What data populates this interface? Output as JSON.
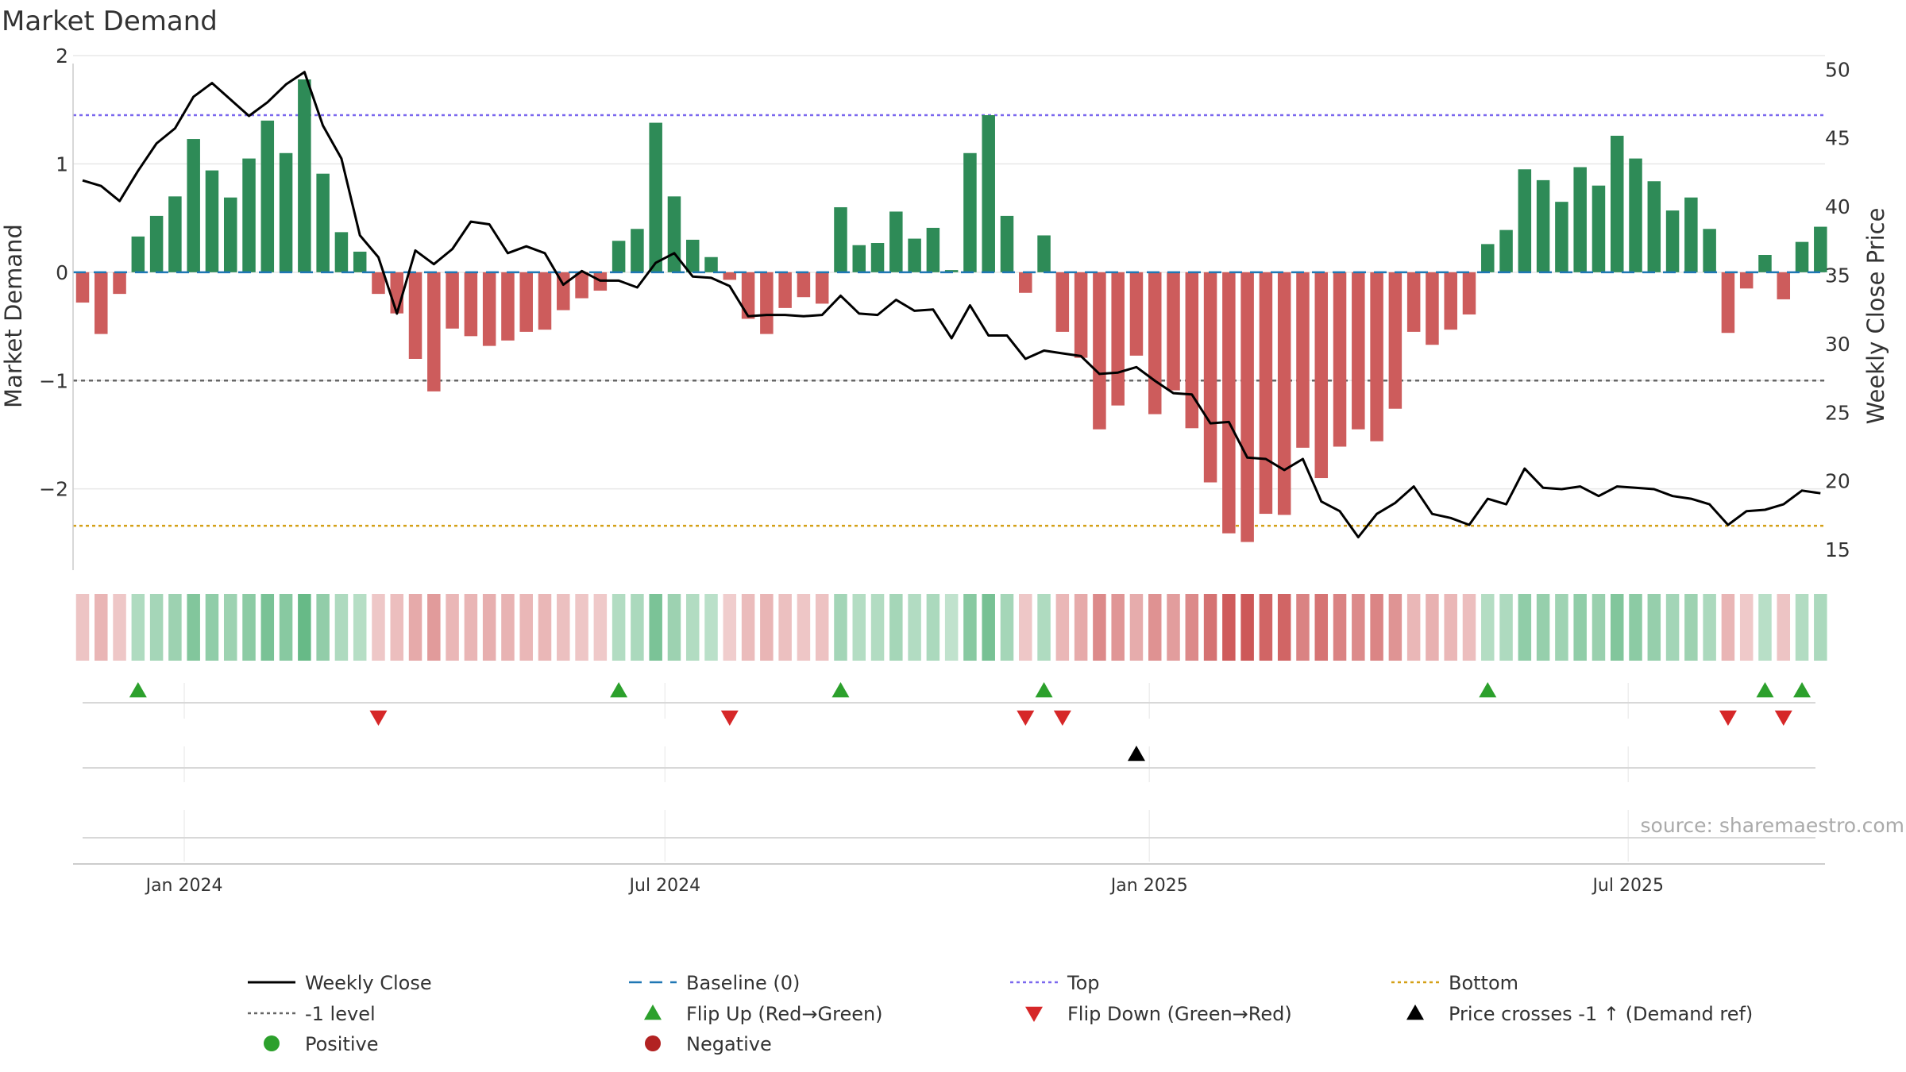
{
  "chart_data": {
    "type": "bar",
    "title": "Market Demand",
    "ylabel_left": "Market Demand",
    "ylabel_right": "Weekly Close Price",
    "ylim_left": [
      -2.75,
      2
    ],
    "ylim_right": [
      13.5,
      51
    ],
    "yticks_left": [
      {
        "value": 2,
        "label": "2"
      },
      {
        "value": 1,
        "label": "1"
      },
      {
        "value": 0,
        "label": "0"
      },
      {
        "value": -1,
        "label": "−1"
      },
      {
        "value": -2,
        "label": "−2"
      }
    ],
    "yticks_right": [
      {
        "value": 50,
        "label": "50"
      },
      {
        "value": 45,
        "label": "45"
      },
      {
        "value": 40,
        "label": "40"
      },
      {
        "value": 35,
        "label": "35"
      },
      {
        "value": 30,
        "label": "30"
      },
      {
        "value": 25,
        "label": "25"
      },
      {
        "value": 20,
        "label": "20"
      },
      {
        "value": 15,
        "label": "15"
      }
    ],
    "xtick_labels": [
      {
        "label": "Jan 2024",
        "week": 5.5
      },
      {
        "label": "Jul 2024",
        "week": 31.5
      },
      {
        "label": "Jan 2025",
        "week": 57.7
      },
      {
        "label": "Jul 2025",
        "week": 83.6
      }
    ],
    "reference_lines": {
      "baseline": 0,
      "top": 1.45,
      "bottom": -2.34,
      "minus_one": -1
    },
    "demand": [
      -0.28,
      -0.57,
      -0.2,
      0.33,
      0.52,
      0.7,
      1.23,
      0.94,
      0.69,
      1.05,
      1.4,
      1.1,
      1.78,
      0.91,
      0.37,
      0.19,
      -0.2,
      -0.38,
      -0.8,
      -1.1,
      -0.52,
      -0.59,
      -0.68,
      -0.63,
      -0.55,
      -0.53,
      -0.35,
      -0.24,
      -0.17,
      0.29,
      0.4,
      1.38,
      0.7,
      0.3,
      0.14,
      -0.07,
      -0.43,
      -0.57,
      -0.33,
      -0.23,
      -0.29,
      0.6,
      0.25,
      0.27,
      0.56,
      0.31,
      0.41,
      0.02,
      1.1,
      1.45,
      0.52,
      -0.19,
      0.34,
      -0.55,
      -0.79,
      -1.45,
      -1.23,
      -0.77,
      -1.31,
      -1.09,
      -1.44,
      -1.94,
      -2.41,
      -2.49,
      -2.23,
      -2.24,
      -1.62,
      -1.9,
      -1.61,
      -1.45,
      -1.56,
      -1.26,
      -0.55,
      -0.67,
      -0.53,
      -0.39,
      0.26,
      0.39,
      0.95,
      0.85,
      0.65,
      0.97,
      0.8,
      1.26,
      1.05,
      0.84,
      0.57,
      0.69,
      0.4,
      -0.56,
      -0.15,
      0.16,
      -0.25,
      0.28,
      0.42
    ],
    "weekly_close": [
      41.9,
      41.5,
      40.4,
      42.6,
      44.6,
      45.7,
      48.0,
      49.0,
      47.8,
      46.6,
      47.6,
      48.9,
      49.8,
      45.9,
      43.5,
      37.9,
      36.3,
      32.2,
      36.8,
      35.8,
      36.9,
      38.9,
      38.7,
      36.6,
      37.1,
      36.6,
      34.3,
      35.3,
      34.6,
      34.6,
      34.1,
      35.9,
      36.6,
      34.9,
      34.8,
      34.2,
      32.0,
      32.1,
      32.1,
      32.0,
      32.1,
      33.5,
      32.2,
      32.1,
      33.2,
      32.4,
      32.5,
      30.4,
      32.8,
      30.6,
      30.6,
      28.9,
      29.5,
      29.3,
      29.1,
      27.8,
      27.9,
      28.3,
      27.3,
      26.4,
      26.3,
      24.2,
      24.3,
      21.7,
      21.6,
      20.8,
      21.6,
      18.5,
      17.8,
      15.9,
      17.6,
      18.4,
      19.6,
      17.6,
      17.3,
      16.8,
      18.7,
      18.3,
      20.9,
      19.5,
      19.4,
      19.6,
      18.9,
      19.6,
      19.5,
      19.4,
      18.9,
      18.7,
      18.3,
      16.8,
      17.8,
      17.9,
      18.3,
      19.3,
      19.1
    ],
    "flip_up_weeks": [
      3,
      29,
      41,
      52,
      76,
      91,
      93
    ],
    "flip_down_weeks": [
      16,
      35,
      51,
      53,
      89,
      92
    ],
    "price_cross_weeks": [
      57
    ],
    "source": "source: sharemaestro.com"
  },
  "legend": [
    {
      "label": "Weekly Close",
      "key": "line-solid",
      "color": "#000000"
    },
    {
      "label": "Baseline (0)",
      "key": "line-dash",
      "color": "#1f77b4"
    },
    {
      "label": "Top",
      "key": "line-dot",
      "color": "#7b68ee"
    },
    {
      "label": "Bottom",
      "key": "line-dot",
      "color": "#d4a017"
    },
    {
      "label": "-1 level",
      "key": "line-dot",
      "color": "#666666"
    },
    {
      "label": "Flip Up (Red→Green)",
      "key": "triangle-up",
      "color": "#2ca02c"
    },
    {
      "label": "Flip Down (Green→Red)",
      "key": "triangle-down",
      "color": "#d62728"
    },
    {
      "label": "Price crosses -1 ↑ (Demand ref)",
      "key": "triangle-up",
      "color": "#000000"
    },
    {
      "label": "Positive",
      "key": "circle",
      "color": "#2ca02c"
    },
    {
      "label": "Negative",
      "key": "circle",
      "color": "#b22222"
    }
  ],
  "colors": {
    "positive_bar": "#2e8b57",
    "negative_bar": "#cd5c5c",
    "price_line": "#000000",
    "baseline": "#1f77b4",
    "top_line": "#7b68ee",
    "bottom_line": "#d4a017",
    "minus_one_line": "#666666",
    "flip_up": "#2ca02c",
    "flip_down": "#d62728",
    "price_cross": "#000000",
    "grid": "#e8e8e8",
    "axis": "#cccccc"
  }
}
